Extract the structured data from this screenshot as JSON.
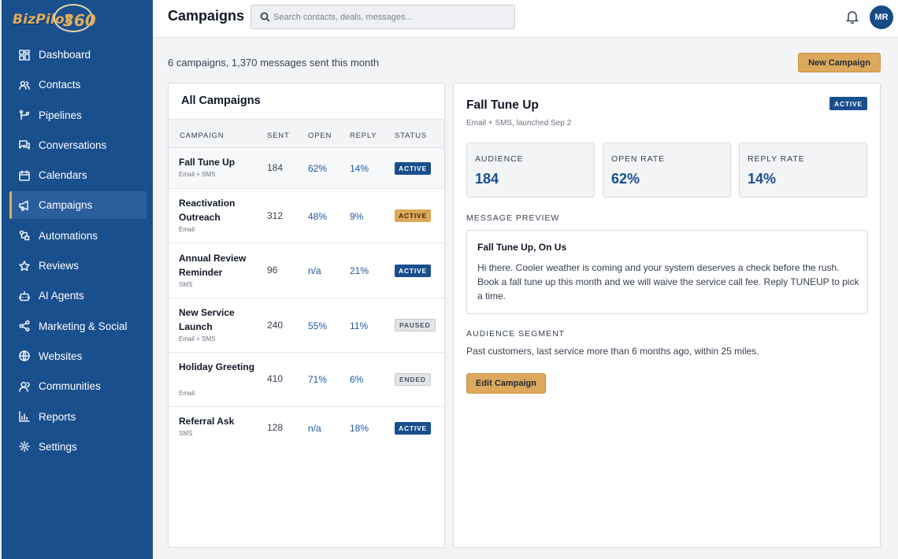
{
  "app": {
    "logo_text": "BizPilot",
    "logo_num": "360"
  },
  "header": {
    "title": "Campaigns",
    "search_placeholder": "Search contacts, deals, messages...",
    "avatar_initials": "MR"
  },
  "sidebar": {
    "active": "Campaigns",
    "items": [
      {
        "label": "Dashboard",
        "icon": "dashboard-icon"
      },
      {
        "label": "Contacts",
        "icon": "contacts-icon"
      },
      {
        "label": "Pipelines",
        "icon": "pipelines-icon"
      },
      {
        "label": "Conversations",
        "icon": "conversations-icon"
      },
      {
        "label": "Calendars",
        "icon": "calendar-icon"
      },
      {
        "label": "Campaigns",
        "icon": "megaphone-icon"
      },
      {
        "label": "Automations",
        "icon": "automations-icon"
      },
      {
        "label": "Reviews",
        "icon": "star-icon"
      },
      {
        "label": "AI Agents",
        "icon": "robot-icon"
      },
      {
        "label": "Marketing & Social",
        "icon": "share-icon"
      },
      {
        "label": "Websites",
        "icon": "globe-icon"
      },
      {
        "label": "Communities",
        "icon": "community-icon"
      },
      {
        "label": "Reports",
        "icon": "bar-chart-icon"
      },
      {
        "label": "Settings",
        "icon": "gear-icon"
      }
    ]
  },
  "summary": "6 campaigns, 1,370 messages sent this month",
  "new_campaign_label": "New Campaign",
  "list": {
    "title": "All Campaigns",
    "columns": [
      "CAMPAIGN",
      "SENT",
      "OPEN",
      "REPLY",
      "STATUS"
    ],
    "rows": [
      {
        "name": "Fall Tune Up",
        "channel": "Email + SMS",
        "sent": "184",
        "open": "62%",
        "reply": "14%",
        "status": "ACTIVE",
        "status_style": "active"
      },
      {
        "name": "Reactivation Outreach",
        "channel": "Email",
        "sent": "312",
        "open": "48%",
        "reply": "9%",
        "status": "ACTIVE",
        "status_style": "active-gold"
      },
      {
        "name": "Annual Review Reminder",
        "channel": "SMS",
        "sent": "96",
        "open": "n/a",
        "reply": "21%",
        "status": "ACTIVE",
        "status_style": "active"
      },
      {
        "name": "New Service Launch",
        "channel": "Email + SMS",
        "sent": "240",
        "open": "55%",
        "reply": "11%",
        "status": "PAUSED",
        "status_style": "paused"
      },
      {
        "name": "Holiday Greeting",
        "channel": "Email",
        "sent": "410",
        "open": "71%",
        "reply": "6%",
        "status": "ENDED",
        "status_style": "ended"
      },
      {
        "name": "Referral Ask",
        "channel": "SMS",
        "sent": "128",
        "open": "n/a",
        "reply": "18%",
        "status": "ACTIVE",
        "status_style": "active"
      }
    ]
  },
  "detail": {
    "title": "Fall Tune Up",
    "subtitle": "Email + SMS, launched Sep 2",
    "status": "ACTIVE",
    "stats": [
      {
        "label": "AUDIENCE",
        "value": "184"
      },
      {
        "label": "OPEN RATE",
        "value": "62%"
      },
      {
        "label": "REPLY RATE",
        "value": "14%"
      }
    ],
    "preview_label": "MESSAGE PREVIEW",
    "preview_subject": "Fall Tune Up, On Us",
    "preview_body": "Hi there. Cooler weather is coming and your system deserves a check before the rush. Book a fall tune up this month and we will waive the service call fee. Reply TUNEUP to pick a time.",
    "segment_label": "AUDIENCE SEGMENT",
    "segment_text": "Past customers, last service more than 6 months ago, within 25 miles.",
    "edit_label": "Edit Campaign"
  },
  "colors": {
    "sidebar": "#1a4f8e",
    "accent_gold": "#dca85b",
    "link_blue": "#1d5aa6"
  }
}
